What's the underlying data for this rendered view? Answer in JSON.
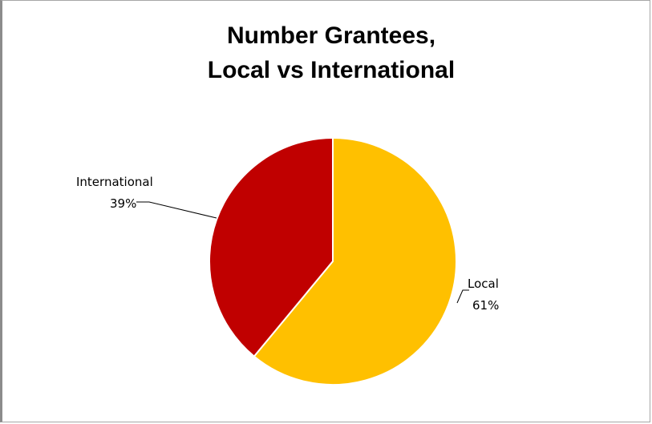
{
  "chart_data": {
    "type": "pie",
    "title_lines": [
      "Number Grantees,",
      "Local vs International"
    ],
    "slices": [
      {
        "name": "Local",
        "value": 61,
        "label": "61%",
        "color": "#FFC000"
      },
      {
        "name": "International",
        "value": 39,
        "label": "39%",
        "color": "#C00000"
      }
    ],
    "legend": "none"
  }
}
